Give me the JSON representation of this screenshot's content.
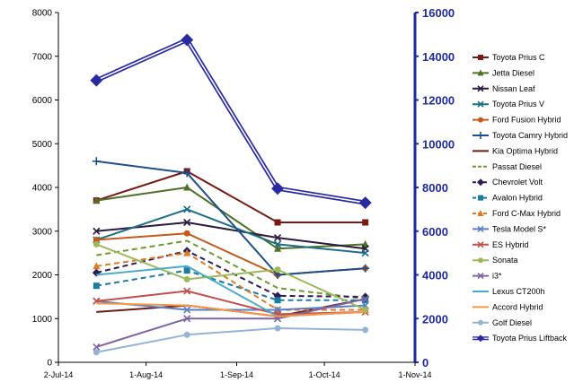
{
  "chart_data": {
    "type": "line",
    "x_ticks": [
      "2-Jul-14",
      "1-Aug-14",
      "1-Sep-14",
      "1-Oct-14",
      "1-Nov-14"
    ],
    "x_tick_dates": [
      "2014-07-02",
      "2014-08-01",
      "2014-09-01",
      "2014-10-01",
      "2014-11-01"
    ],
    "xlim": [
      "2014-07-02",
      "2014-11-01"
    ],
    "y_left": {
      "ticks": [
        "0",
        "1000",
        "2000",
        "3000",
        "4000",
        "5000",
        "6000",
        "7000",
        "8000"
      ],
      "ylim": [
        0,
        8000
      ]
    },
    "y_right": {
      "ticks": [
        "0",
        "2000",
        "4000",
        "6000",
        "8000",
        "10000",
        "12000",
        "14000",
        "16000"
      ],
      "ylim": [
        0,
        16000
      ],
      "color": "#1f2a9c"
    },
    "grid": false,
    "legend_position": "right",
    "x": [
      "2014-07-15",
      "2014-08-15",
      "2014-09-15",
      "2014-10-15"
    ],
    "series": [
      {
        "name": "Toyota Prius C",
        "axis": "left",
        "color": "#7a1a14",
        "style": "solid",
        "marker": "square",
        "values": [
          3700,
          4370,
          3200,
          3200
        ]
      },
      {
        "name": "Jetta Diesel",
        "axis": "left",
        "color": "#4e7126",
        "style": "solid",
        "marker": "triangle",
        "values": [
          3700,
          4000,
          2600,
          2700
        ]
      },
      {
        "name": "Nissan Leaf",
        "axis": "left",
        "color": "#2b1a3e",
        "style": "solid",
        "marker": "x",
        "values": [
          3000,
          3200,
          2850,
          2600
        ]
      },
      {
        "name": "Toyota Prius V",
        "axis": "left",
        "color": "#1d6e86",
        "style": "solid",
        "marker": "x",
        "values": [
          2800,
          3500,
          2700,
          2500
        ]
      },
      {
        "name": "Ford Fusion Hybrid",
        "axis": "left",
        "color": "#c25a1b",
        "style": "solid",
        "marker": "circle",
        "values": [
          2800,
          2950,
          2000,
          2150
        ]
      },
      {
        "name": "Toyota Camry Hybrid",
        "axis": "left",
        "color": "#1d4f8c",
        "style": "solid",
        "marker": "plus",
        "values": [
          4600,
          4330,
          2000,
          2150
        ]
      },
      {
        "name": "Kia Optima Hybrid",
        "axis": "left",
        "color": "#6b1c17",
        "style": "solid",
        "marker": "none",
        "values": [
          1150,
          1300,
          1050,
          1450
        ]
      },
      {
        "name": "Passat Diesel",
        "axis": "left",
        "color": "#6f9a2c",
        "style": "dashed",
        "marker": "none",
        "values": [
          2450,
          2780,
          1700,
          1450
        ]
      },
      {
        "name": "Chevrolet Volt",
        "axis": "left",
        "color": "#2e1b52",
        "style": "dashed",
        "marker": "diamond",
        "values": [
          2050,
          2550,
          1520,
          1500
        ]
      },
      {
        "name": "Avalon Hybrid",
        "axis": "left",
        "color": "#1b7ba0",
        "style": "dashed",
        "marker": "square",
        "values": [
          1750,
          2100,
          1420,
          1420
        ]
      },
      {
        "name": "Ford C-Max Hybrid",
        "axis": "left",
        "color": "#e07a20",
        "style": "dashed",
        "marker": "triangle",
        "values": [
          2200,
          2500,
          1200,
          1200
        ]
      },
      {
        "name": "Tesla Model S*",
        "axis": "left",
        "color": "#5b80c4",
        "style": "solid",
        "marker": "x",
        "values": [
          1400,
          1200,
          1200,
          1300
        ]
      },
      {
        "name": "ES Hybrid",
        "axis": "left",
        "color": "#c0504d",
        "style": "solid",
        "marker": "x",
        "values": [
          1400,
          1630,
          1100,
          1150
        ]
      },
      {
        "name": "Sonata",
        "axis": "left",
        "color": "#9bbb59",
        "style": "solid",
        "marker": "circle",
        "values": [
          2700,
          1900,
          2120,
          1200
        ]
      },
      {
        "name": "i3*",
        "axis": "left",
        "color": "#8064a2",
        "style": "solid",
        "marker": "x",
        "values": [
          350,
          1000,
          1000,
          1450
        ]
      },
      {
        "name": "Lexus CT200h",
        "axis": "left",
        "color": "#4bacc6",
        "style": "solid",
        "marker": "none",
        "values": [
          2000,
          2200,
          1050,
          1150
        ]
      },
      {
        "name": "Accord Hybrid",
        "axis": "left",
        "color": "#f79646",
        "style": "solid",
        "marker": "none",
        "values": [
          1350,
          1300,
          1050,
          1150
        ]
      },
      {
        "name": "Golf Diesel",
        "axis": "left",
        "color": "#95b3d7",
        "style": "solid",
        "marker": "circle",
        "values": [
          230,
          630,
          780,
          740
        ]
      },
      {
        "name": "Toyota Prius Liftback",
        "axis": "right",
        "color": "#2a2aa0",
        "style": "double",
        "marker": "diamond",
        "values": [
          12900,
          14750,
          7950,
          7300
        ]
      }
    ]
  }
}
